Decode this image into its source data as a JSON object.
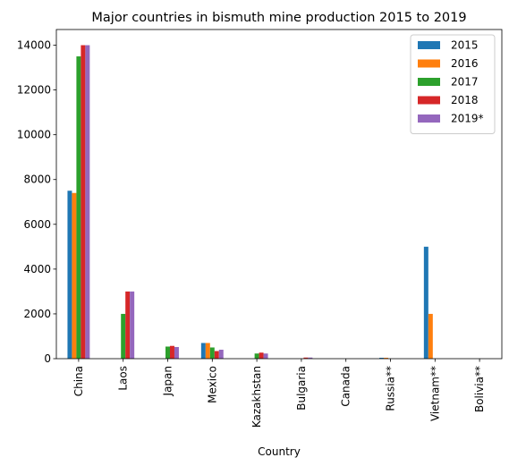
{
  "chart_data": {
    "type": "bar",
    "title": "Major countries in bismuth mine production 2015 to 2019",
    "xlabel": "Country",
    "ylabel": "",
    "categories": [
      "China",
      "Laos",
      "Japan",
      "Mexico",
      "Kazakhstan",
      "Bulgaria",
      "Canada",
      "Russia**",
      "Vietnam**",
      "Bolivia**"
    ],
    "ylim": [
      0,
      14700
    ],
    "yticks": [
      0,
      2000,
      4000,
      6000,
      8000,
      10000,
      12000,
      14000
    ],
    "grid": false,
    "legend_position": "top-right",
    "series": [
      {
        "name": "2015",
        "color": "#1f77b4",
        "values": [
          7500,
          0,
          0,
          700,
          0,
          0,
          0,
          40,
          5000,
          0
        ]
      },
      {
        "name": "2016",
        "color": "#ff7f0e",
        "values": [
          7400,
          0,
          0,
          700,
          0,
          0,
          0,
          40,
          2000,
          0
        ]
      },
      {
        "name": "2017",
        "color": "#2ca02c",
        "values": [
          13500,
          2000,
          540,
          500,
          230,
          0,
          0,
          0,
          0,
          0
        ]
      },
      {
        "name": "2018",
        "color": "#d62728",
        "values": [
          14000,
          3000,
          570,
          340,
          270,
          50,
          0,
          0,
          0,
          0
        ]
      },
      {
        "name": "2019*",
        "color": "#9467bd",
        "values": [
          14000,
          3000,
          520,
          400,
          230,
          50,
          0,
          0,
          0,
          0
        ]
      }
    ]
  }
}
